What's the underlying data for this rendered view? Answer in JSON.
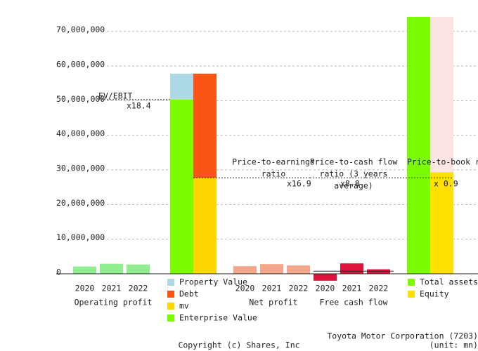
{
  "chart_data": {
    "type": "valuation",
    "ylim": [
      0,
      74200000
    ],
    "yticks": [
      {
        "value": 0,
        "label": "0"
      },
      {
        "value": 10000000,
        "label": "10,000,000"
      },
      {
        "value": 20000000,
        "label": "20,000,000"
      },
      {
        "value": 30000000,
        "label": "30,000,000"
      },
      {
        "value": 40000000,
        "label": "40,000,000"
      },
      {
        "value": 50000000,
        "label": "50,000,000"
      },
      {
        "value": 60000000,
        "label": "60,000,000"
      },
      {
        "value": 70000000,
        "label": "70,000,000"
      }
    ],
    "grid": true,
    "groups": [
      {
        "name": "Operating profit",
        "categories": [
          "2020",
          "2021",
          "2022"
        ],
        "values": [
          2100000,
          2900000,
          2700000
        ],
        "color": "#90ee90"
      },
      {
        "name": "Net profit",
        "categories": [
          "2020",
          "2021",
          "2022"
        ],
        "values": [
          2200000,
          2800000,
          2400000
        ],
        "color": "#f4a68a"
      },
      {
        "name": "Free cash flow",
        "categories": [
          "2020",
          "2021",
          "2022"
        ],
        "values": [
          -2000000,
          3000000,
          1300000
        ],
        "color": "#dc143c",
        "average": 770000
      }
    ],
    "stacks": [
      {
        "segments": [
          {
            "name": "Enterprise Value",
            "color": "#7cfc00",
            "value": 50300000
          },
          {
            "name": "Property Value",
            "color": "#add8e6",
            "value": 7500000
          }
        ]
      },
      {
        "segments": [
          {
            "name": "mv",
            "color": "#ffd700",
            "value": 27700000
          },
          {
            "name": "Debt",
            "color": "#fa5514",
            "value": 30100000
          }
        ]
      },
      {
        "segments": [
          {
            "name": "Total assets",
            "color": "#7cfc00",
            "value": 75000000
          }
        ]
      },
      {
        "segments": [
          {
            "name": "Equity",
            "color": "#ffe000",
            "value": 29300000
          },
          {
            "color": "#fae4e4",
            "value": 45700000
          }
        ]
      }
    ],
    "ratios": [
      {
        "label": [
          "EV/EBIT"
        ],
        "value_label": "x18.4",
        "level": 50300000
      },
      {
        "label": [
          "Price-to-earnings",
          "ratio"
        ],
        "value_label": "x16.9",
        "level": 27700000
      },
      {
        "label": [
          "Price-to-cash flow",
          "ratio (3 years",
          "average)"
        ],
        "value_label": "x8.8",
        "level": 27700000
      },
      {
        "label": [
          "Price-to-book ratio"
        ],
        "value_label": "x 0.9"
      }
    ],
    "company": "Toyota Motor Corporation (7203)",
    "unit": "(unit: mn)",
    "copyright": "Copyright (c) Shares, Inc"
  }
}
